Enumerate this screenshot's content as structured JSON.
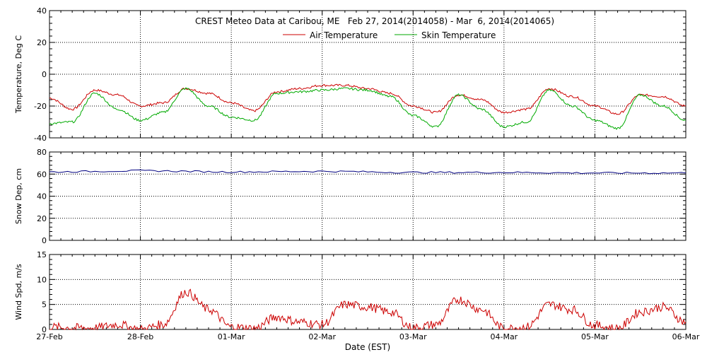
{
  "title": "CREST Meteo Data at Caribou, ME   Feb 27, 2014(2014058) - Mar  6, 2014(2014065)",
  "xlabel": "Date (EST)",
  "x_tick_labels": [
    "27-Feb",
    "28-Feb",
    "01-Mar",
    "02-Mar",
    "03-Mar",
    "04-Mar",
    "05-Mar",
    "06-Mar"
  ],
  "colors": {
    "air": "#cc0000",
    "skin": "#00aa00",
    "snow": "#000080",
    "wind": "#cc0000"
  },
  "chart_data": [
    {
      "type": "line",
      "ylabel": "Temperature, Deg C",
      "ylim": [
        -40,
        40
      ],
      "yticks": [
        -40,
        -20,
        0,
        20,
        40
      ],
      "xlim": [
        "2014-02-27 00:00",
        "2014-03-06 00:00"
      ],
      "grid": true,
      "legend": "top-center",
      "x": [
        "2014-02-27 00:00",
        "2014-02-27 06:00",
        "2014-02-27 12:00",
        "2014-02-27 18:00",
        "2014-02-28 00:00",
        "2014-02-28 06:00",
        "2014-02-28 12:00",
        "2014-02-28 18:00",
        "2014-03-01 00:00",
        "2014-03-01 06:00",
        "2014-03-01 12:00",
        "2014-03-01 18:00",
        "2014-03-02 00:00",
        "2014-03-02 06:00",
        "2014-03-02 12:00",
        "2014-03-02 18:00",
        "2014-03-03 00:00",
        "2014-03-03 06:00",
        "2014-03-03 12:00",
        "2014-03-03 18:00",
        "2014-03-04 00:00",
        "2014-03-04 06:00",
        "2014-03-04 12:00",
        "2014-03-04 18:00",
        "2014-03-05 00:00",
        "2014-03-05 06:00",
        "2014-03-05 12:00",
        "2014-03-05 18:00",
        "2014-03-06 00:00"
      ],
      "series": [
        {
          "name": "Air Temperature",
          "color": "#cc0000",
          "values": [
            -15,
            -22,
            -10,
            -13,
            -20,
            -18,
            -9,
            -12,
            -18,
            -23,
            -11,
            -9,
            -7,
            -7,
            -9,
            -12,
            -20,
            -24,
            -13,
            -16,
            -24,
            -22,
            -9,
            -14,
            -20,
            -25,
            -13,
            -14,
            -20
          ]
        },
        {
          "name": "Skin Temperature",
          "color": "#00aa00",
          "values": [
            -31,
            -30,
            -12,
            -22,
            -29,
            -24,
            -9,
            -20,
            -27,
            -29,
            -12,
            -11,
            -10,
            -9,
            -10,
            -14,
            -26,
            -33,
            -13,
            -22,
            -33,
            -30,
            -10,
            -20,
            -29,
            -34,
            -13,
            -20,
            -29
          ]
        }
      ]
    },
    {
      "type": "line",
      "ylabel": "Snow Dep, cm",
      "ylim": [
        0,
        80
      ],
      "yticks": [
        0,
        20,
        40,
        60,
        80
      ],
      "xlim": [
        "2014-02-27 00:00",
        "2014-03-06 00:00"
      ],
      "grid": true,
      "x": [
        "2014-02-27 00:00",
        "2014-02-28 00:00",
        "2014-03-01 00:00",
        "2014-03-02 00:00",
        "2014-03-03 00:00",
        "2014-03-04 00:00",
        "2014-03-05 00:00",
        "2014-03-06 00:00"
      ],
      "series": [
        {
          "values": [
            62,
            63,
            62,
            62.5,
            61.5,
            61.5,
            61,
            61
          ],
          "color": "#000080"
        }
      ]
    },
    {
      "type": "line",
      "ylabel": "Wind Spd, m/s",
      "ylim": [
        0,
        15
      ],
      "yticks": [
        0,
        5,
        10,
        15
      ],
      "xlim": [
        "2014-02-27 00:00",
        "2014-03-06 00:00"
      ],
      "grid": true,
      "x": [
        "2014-02-27 00:00",
        "2014-02-27 06:00",
        "2014-02-27 12:00",
        "2014-02-27 18:00",
        "2014-02-28 00:00",
        "2014-02-28 06:00",
        "2014-02-28 12:00",
        "2014-02-28 18:00",
        "2014-03-01 00:00",
        "2014-03-01 06:00",
        "2014-03-01 12:00",
        "2014-03-01 18:00",
        "2014-03-02 00:00",
        "2014-03-02 06:00",
        "2014-03-02 12:00",
        "2014-03-02 18:00",
        "2014-03-03 00:00",
        "2014-03-03 06:00",
        "2014-03-03 12:00",
        "2014-03-03 18:00",
        "2014-03-04 00:00",
        "2014-03-04 06:00",
        "2014-03-04 12:00",
        "2014-03-04 18:00",
        "2014-03-05 00:00",
        "2014-03-05 06:00",
        "2014-03-05 12:00",
        "2014-03-05 18:00",
        "2014-03-06 00:00"
      ],
      "series": [
        {
          "values": [
            0.5,
            0.3,
            0.3,
            1,
            0,
            1,
            7.5,
            4,
            0.5,
            0.2,
            2.5,
            1.5,
            1,
            5,
            4.5,
            3.5,
            0.3,
            1,
            6,
            4,
            0.2,
            0.5,
            5,
            4,
            0.8,
            0.2,
            3.5,
            4.5,
            1.5
          ],
          "color": "#cc0000"
        }
      ]
    }
  ]
}
